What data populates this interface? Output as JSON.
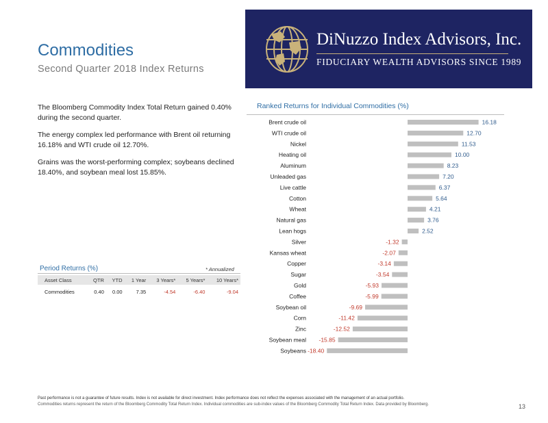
{
  "header": {
    "title": "Commodities",
    "subtitle": "Second Quarter 2018 Index Returns"
  },
  "logo": {
    "name": "DiNuzzo Index Advisors, Inc.",
    "tagline": "FIDUCIARY WEALTH ADVISORS SINCE 1989",
    "background": "#1e2462",
    "globe_color": "#c9b27a"
  },
  "narrative": {
    "p1": "The Bloomberg Commodity Index Total Return gained 0.40% during the second quarter.",
    "p2": "The energy complex led performance with Brent oil returning 16.18% and WTI crude oil 12.70%.",
    "p3": "Grains was the worst-performing complex; soybeans declined 18.40%, and soybean meal lost 15.85%."
  },
  "period_returns": {
    "title": "Period Returns (%)",
    "note": "* Annualized",
    "headers": [
      "Asset Class",
      "QTR",
      "YTD",
      "1 Year",
      "3 Years*",
      "5 Years*",
      "10 Years*"
    ],
    "row": [
      "Commodities",
      "0.40",
      "0.00",
      "7.35",
      "-4.54",
      "-6.40",
      "-9.04"
    ]
  },
  "chart_title": "Ranked Returns for Individual Commodities (%)",
  "colors": {
    "accent_blue": "#2e6da4",
    "bar": "#bfbfbf",
    "positive_label": "#2f5b8c",
    "negative_label": "#c0392b"
  },
  "chart_data": {
    "type": "bar",
    "orientation": "horizontal",
    "title": "Ranked Returns for Individual Commodities (%)",
    "categories": [
      "Brent crude oil",
      "WTI crude oil",
      "Nickel",
      "Heating oil",
      "Aluminum",
      "Unleaded gas",
      "Live cattle",
      "Cotton",
      "Wheat",
      "Natural gas",
      "Lean hogs",
      "Silver",
      "Kansas wheat",
      "Copper",
      "Sugar",
      "Gold",
      "Coffee",
      "Soybean oil",
      "Corn",
      "Zinc",
      "Soybean meal",
      "Soybeans"
    ],
    "values": [
      16.18,
      12.7,
      11.53,
      10.0,
      8.23,
      7.2,
      6.37,
      5.64,
      4.21,
      3.76,
      2.52,
      -1.32,
      -2.07,
      -3.14,
      -3.54,
      -5.93,
      -5.99,
      -9.69,
      -11.42,
      -12.52,
      -15.85,
      -18.4
    ],
    "labels": [
      "16.18",
      "12.70",
      "11.53",
      "10.00",
      "8.23",
      "7.20",
      "6.37",
      "5.64",
      "4.21",
      "3.76",
      "2.52",
      "-1.32",
      "-2.07",
      "-3.14",
      "-3.54",
      "-5.93",
      "-5.99",
      "-9.69",
      "-11.42",
      "-12.52",
      "-15.85",
      "-18.40"
    ],
    "xlim": [
      -20,
      17
    ],
    "grid": false,
    "legend": "none"
  },
  "footer": {
    "disclaimer1": "Past performance is not a guarantee of future results. Index is not available for direct investment. Index performance does not reflect the expenses associated with the management of an actual portfolio.",
    "disclaimer2": "Commodities returns represent the return of the Bloomberg Commodity Total Return Index. Individual commodities are sub-index values of the Bloomberg Commodity Total Return Index. Data provided by Bloomberg.",
    "page_number": "13"
  }
}
